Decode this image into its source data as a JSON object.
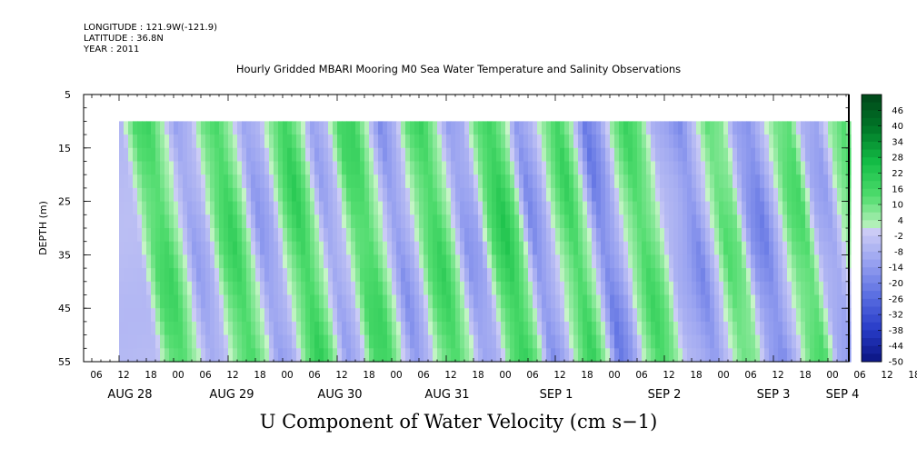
{
  "header": {
    "longitude": "LONGITUDE : 121.9W(-121.9)",
    "latitude": "LATITUDE : 36.8N",
    "year": "YEAR : 2011"
  },
  "title": "Hourly Gridded MBARI Mooring M0 Sea Water Temperature and Salinity Observations",
  "footer": "U Component of Water Velocity (cm s−1)",
  "chart_data": {
    "type": "heatmap",
    "title": "Hourly Gridded MBARI Mooring M0 Sea Water Temperature and Salinity Observations",
    "xlabel": "",
    "ylabel": "DEPTH (m)",
    "y_range": [
      5,
      55
    ],
    "y_axis_reversed": true,
    "y_ticks": [
      "5",
      "15",
      "25",
      "35",
      "45",
      "55"
    ],
    "x_hour_ticks": [
      "06",
      "12",
      "18",
      "00",
      "06",
      "12",
      "18",
      "00",
      "06",
      "12",
      "18",
      "00",
      "06",
      "12",
      "18",
      "00",
      "06",
      "12",
      "18",
      "00",
      "06",
      "12",
      "18",
      "00",
      "06",
      "12",
      "18",
      "00",
      "06",
      "12",
      "18",
      "00"
    ],
    "x_day_labels": [
      "AUG 28",
      "AUG 29",
      "AUG 30",
      "AUG 31",
      "SEP  1",
      "SEP  2",
      "SEP  3",
      "SEP  4"
    ],
    "x_range_days": [
      "AUG 28",
      "SEP 4"
    ],
    "data_depth_range": [
      10,
      55
    ],
    "colorbar_levels": [
      "46",
      "40",
      "34",
      "28",
      "22",
      "16",
      "10",
      "4",
      "-2",
      "-8",
      "-14",
      "-20",
      "-26",
      "-32",
      "-38",
      "-44",
      "-50"
    ],
    "colorbar_min": -50,
    "colorbar_max": 52,
    "field_pattern_hours": [
      3,
      6,
      9,
      12,
      15,
      18,
      21,
      24,
      27,
      30,
      33,
      36,
      39,
      42,
      45,
      48,
      51,
      54,
      57,
      60,
      63,
      66,
      69,
      72,
      75,
      78,
      81,
      84,
      87,
      90,
      93,
      96,
      99,
      102,
      105,
      108,
      111,
      114,
      117,
      120,
      123,
      126,
      129,
      132,
      135,
      138,
      141,
      144,
      147,
      150,
      153,
      156,
      159,
      162,
      165
    ],
    "field_pattern_values": [
      -6,
      14,
      18,
      4,
      -14,
      -8,
      12,
      20,
      6,
      -16,
      -10,
      10,
      22,
      8,
      -14,
      -6,
      16,
      18,
      2,
      -18,
      -8,
      12,
      20,
      6,
      -16,
      -12,
      14,
      24,
      10,
      -20,
      -10,
      8,
      20,
      4,
      -24,
      -14,
      6,
      18,
      10,
      -8,
      -12,
      -20,
      -4,
      14,
      10,
      -16,
      -22,
      -6,
      12,
      16,
      -10,
      -14,
      6,
      14,
      -2
    ]
  }
}
